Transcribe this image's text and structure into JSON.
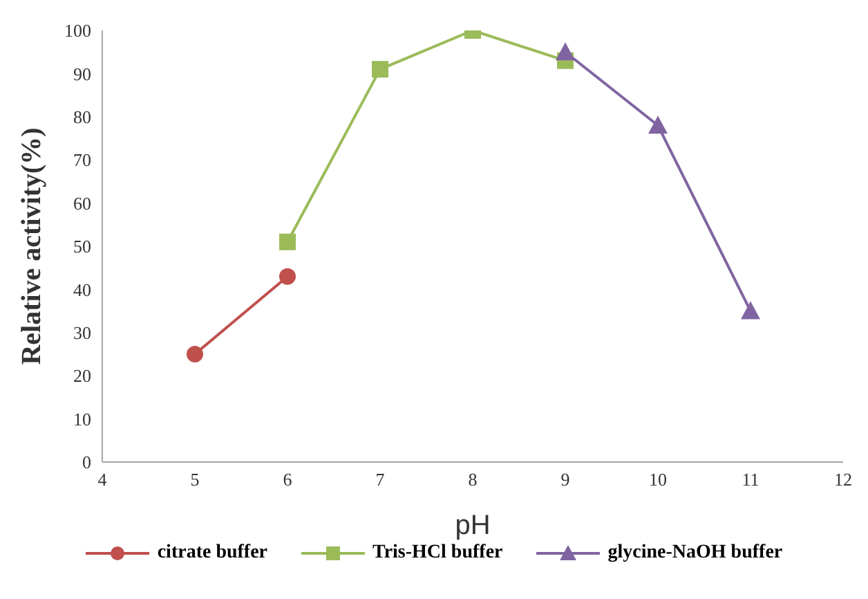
{
  "chart_data": {
    "type": "line",
    "xlabel": "pH",
    "ylabel": "Relative activity(%)",
    "xlim": [
      4,
      12
    ],
    "xticks": [
      4,
      5,
      6,
      7,
      8,
      9,
      10,
      11,
      12
    ],
    "ylim": [
      0,
      100
    ],
    "yticks": [
      0,
      10,
      20,
      30,
      40,
      50,
      60,
      70,
      80,
      90,
      100
    ],
    "grid": false,
    "legend": "bottom",
    "series": [
      {
        "name": "citrate buffer",
        "color": "#c0504d",
        "marker": "circle",
        "x": [
          5,
          6
        ],
        "values": [
          25,
          43
        ]
      },
      {
        "name": "Tris-HCl buffer",
        "color": "#9bbb59",
        "marker": "square",
        "x": [
          6,
          7,
          8,
          9
        ],
        "values": [
          51,
          91,
          100,
          93
        ]
      },
      {
        "name": "glycine-NaOH buffer",
        "color": "#8064a2",
        "marker": "triangle",
        "x": [
          9,
          10,
          11
        ],
        "values": [
          95,
          78,
          35
        ]
      }
    ]
  }
}
